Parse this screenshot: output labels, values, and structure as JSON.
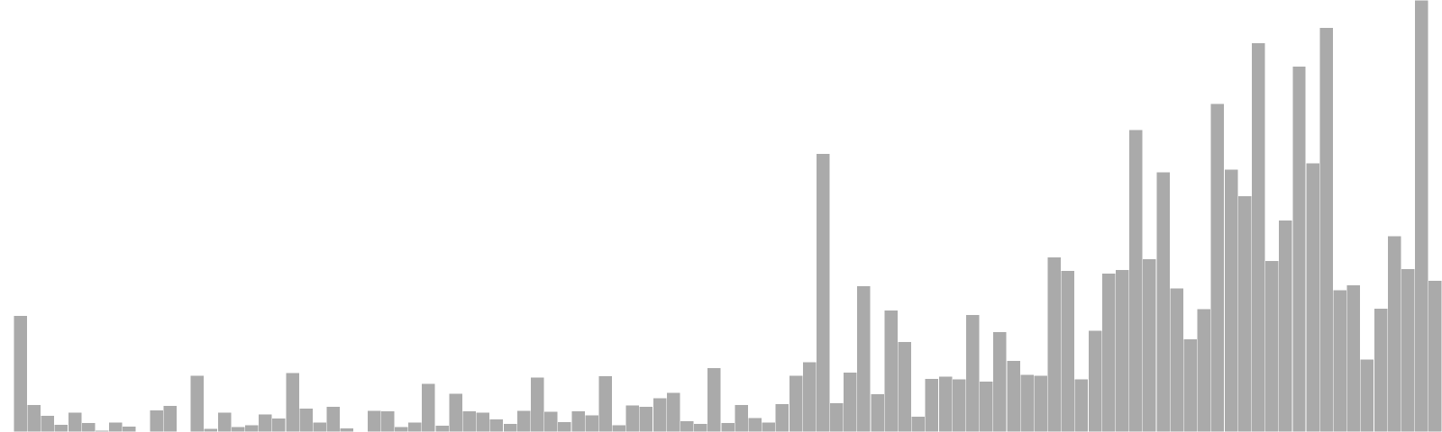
{
  "chart_data": {
    "type": "bar",
    "bar_color": "#aaaaaa",
    "background": "#ffffff",
    "grid": false,
    "axes_visible": false,
    "ylim": [
      0,
      100
    ],
    "values": [
      0.0,
      26.9,
      6.3,
      3.8,
      1.7,
      4.5,
      2.1,
      0.4,
      2.3,
      1.3,
      0.2,
      5.1,
      6.1,
      0.0,
      13.1,
      0.8,
      4.5,
      1.2,
      1.6,
      4.1,
      3.2,
      13.7,
      5.5,
      2.2,
      5.9,
      0.9,
      0.0,
      5.0,
      4.9,
      1.2,
      2.3,
      11.2,
      1.5,
      8.9,
      4.9,
      4.5,
      3.0,
      1.9,
      5.0,
      12.7,
      4.7,
      2.4,
      4.9,
      3.9,
      13.0,
      1.6,
      6.2,
      5.9,
      7.9,
      9.1,
      2.6,
      1.9,
      14.9,
      2.1,
      6.3,
      3.3,
      2.3,
      6.5,
      13.1,
      16.2,
      64.4,
      6.7,
      13.8,
      33.8,
      8.8,
      28.2,
      20.9,
      3.6,
      12.4,
      12.9,
      12.3,
      27.1,
      11.7,
      23.2,
      16.5,
      13.3,
      13.1,
      40.5,
      37.4,
      12.2,
      23.5,
      36.7,
      37.6,
      70.0,
      40.1,
      60.2,
      33.3,
      21.5,
      28.5,
      76.0,
      60.8,
      54.6,
      90.1,
      39.6,
      49.0,
      84.6,
      62.2,
      93.6,
      32.9,
      34.0,
      16.8,
      28.6,
      45.4,
      37.8,
      100.0,
      35.1
    ]
  }
}
